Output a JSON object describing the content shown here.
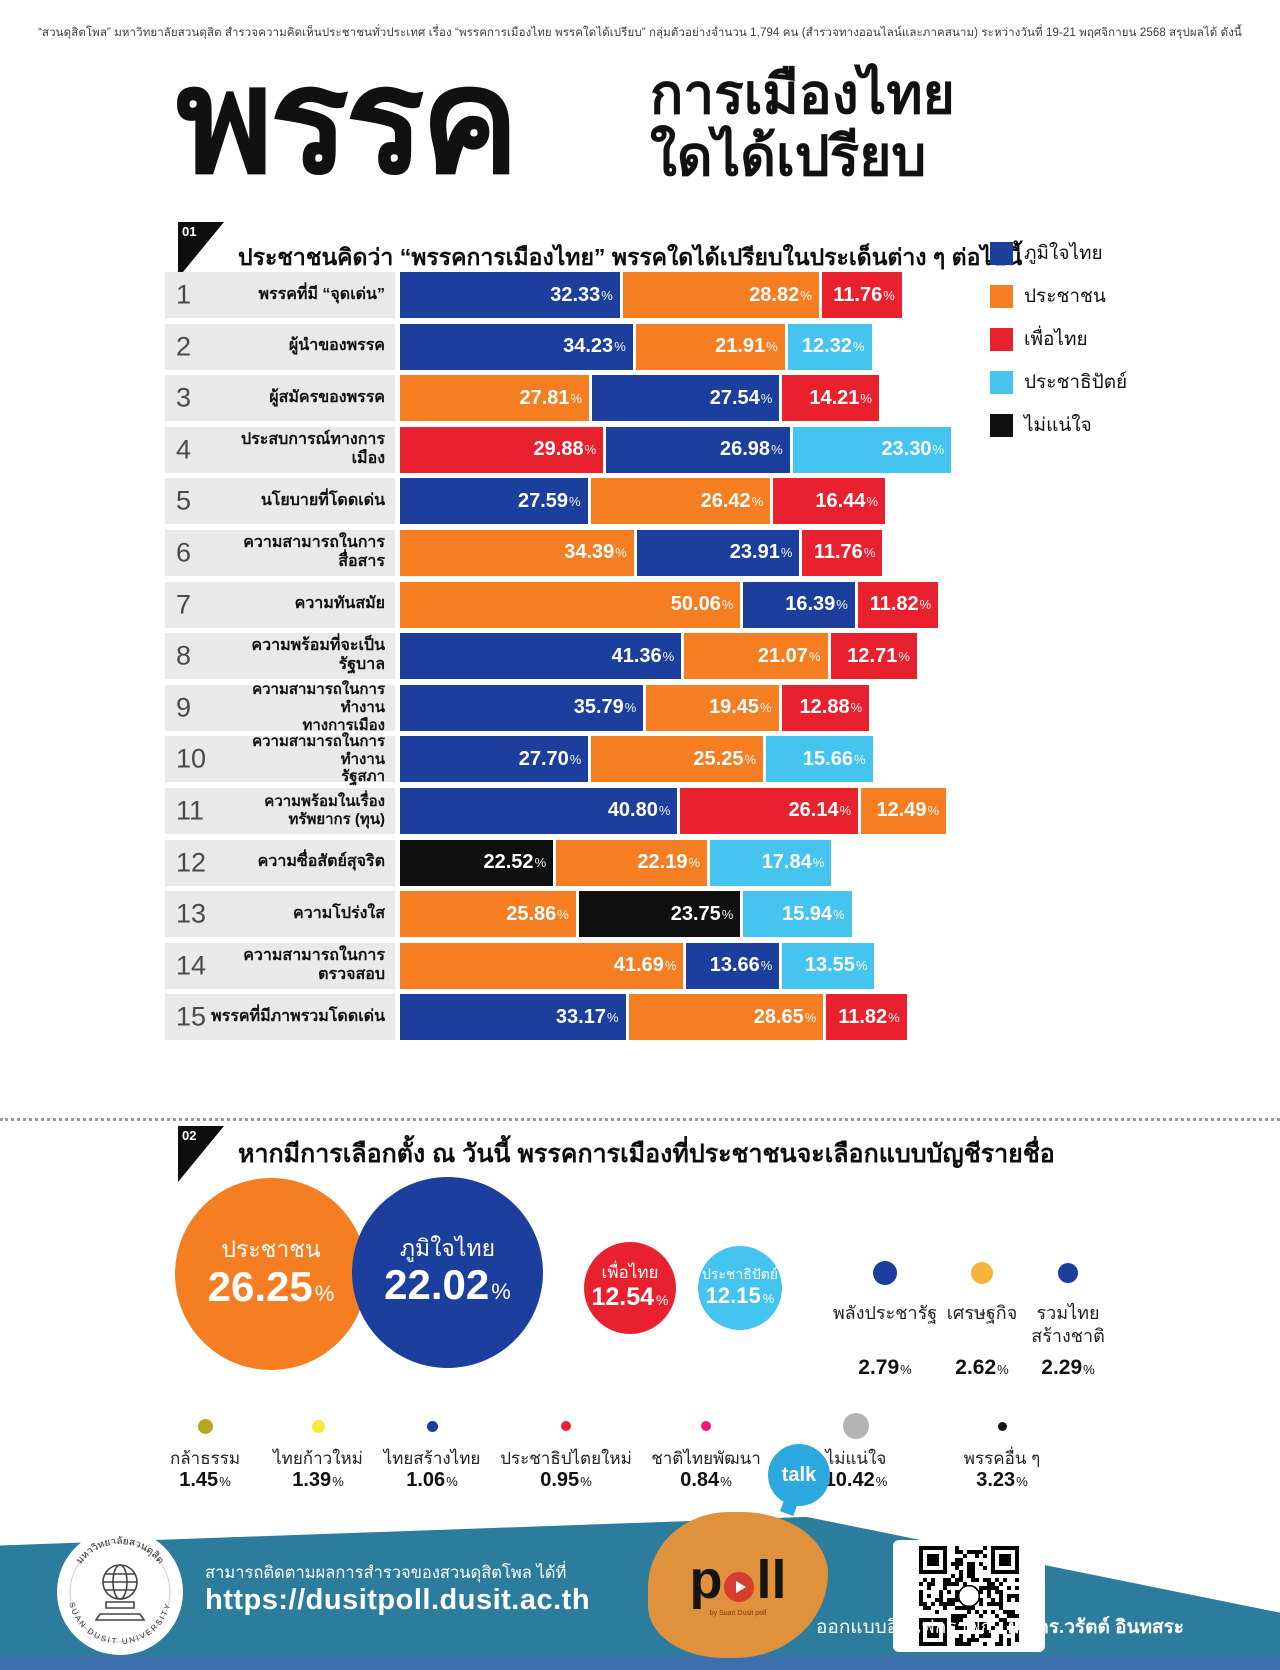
{
  "header_note": "“สวนดุสิตโพล” มหาวิทยาลัยสวนดุสิต สำรวจความคิดเห็นประชาชนทั่วประเทศ เรื่อง “พรรคการเมืองไทย พรรคใดได้เปรียบ” กลุ่มตัวอย่างจำนวน 1,794 คน  (สำรวจทางออนไลน์และภาคสนาม) ระหว่างวันที่ 19-21 พฤศจิกายน 2568  สรุปผลได้ ดังนี้",
  "title": {
    "big": "พรรค",
    "line1": "การเมืองไทย",
    "line2": "ใดได้เปรียบ"
  },
  "units": {
    "percent": "%"
  },
  "colors": {
    "bjt": "#1c3f9e",
    "pp": "#f47e21",
    "pt": "#e9212e",
    "dem": "#45c4ef",
    "unsure": "#0f0f0f"
  },
  "section1": {
    "number": "01",
    "title": "ประชาชนคิดว่า “พรรคการเมืองไทย” พรรคใดได้เปรียบในประเด็นต่าง ๆ ต่อไปนี้",
    "legend": [
      {
        "party": "bjt",
        "label": "ภูมิใจไทย"
      },
      {
        "party": "pp",
        "label": "ประชาชน"
      },
      {
        "party": "pt",
        "label": "เพื่อไทย"
      },
      {
        "party": "dem",
        "label": "ประชาธิปัตย์"
      },
      {
        "party": "unsure",
        "label": "ไม่แน่ใจ"
      }
    ],
    "rows": [
      {
        "no": "1",
        "label": "พรรคที่มี “จุดเด่น”",
        "segments": [
          {
            "party": "bjt",
            "value": "32.33"
          },
          {
            "party": "pp",
            "value": "28.82"
          },
          {
            "party": "pt",
            "value": "11.76"
          }
        ]
      },
      {
        "no": "2",
        "label": "ผู้นำของพรรค",
        "segments": [
          {
            "party": "bjt",
            "value": "34.23"
          },
          {
            "party": "pp",
            "value": "21.91"
          },
          {
            "party": "dem",
            "value": "12.32"
          }
        ]
      },
      {
        "no": "3",
        "label": "ผู้สมัครของพรรค",
        "segments": [
          {
            "party": "pp",
            "value": "27.81"
          },
          {
            "party": "bjt",
            "value": "27.54"
          },
          {
            "party": "pt",
            "value": "14.21"
          }
        ]
      },
      {
        "no": "4",
        "label": "ประสบการณ์ทางการเมือง",
        "segments": [
          {
            "party": "pt",
            "value": "29.88"
          },
          {
            "party": "bjt",
            "value": "26.98"
          },
          {
            "party": "dem",
            "value": "23.30"
          }
        ]
      },
      {
        "no": "5",
        "label": "นโยบายที่โดดเด่น",
        "segments": [
          {
            "party": "bjt",
            "value": "27.59"
          },
          {
            "party": "pp",
            "value": "26.42"
          },
          {
            "party": "pt",
            "value": "16.44"
          }
        ]
      },
      {
        "no": "6",
        "label": "ความสามารถในการสื่อสาร",
        "segments": [
          {
            "party": "pp",
            "value": "34.39"
          },
          {
            "party": "bjt",
            "value": "23.91"
          },
          {
            "party": "pt",
            "value": "11.76"
          }
        ]
      },
      {
        "no": "7",
        "label": "ความทันสมัย",
        "segments": [
          {
            "party": "pp",
            "value": "50.06"
          },
          {
            "party": "bjt",
            "value": "16.39"
          },
          {
            "party": "pt",
            "value": "11.82"
          }
        ]
      },
      {
        "no": "8",
        "label": "ความพร้อมที่จะเป็นรัฐบาล",
        "segments": [
          {
            "party": "bjt",
            "value": "41.36"
          },
          {
            "party": "pp",
            "value": "21.07"
          },
          {
            "party": "pt",
            "value": "12.71"
          }
        ]
      },
      {
        "no": "9",
        "label": "ความสามารถในการทำงาน\nทางการเมือง",
        "segments": [
          {
            "party": "bjt",
            "value": "35.79"
          },
          {
            "party": "pp",
            "value": "19.45"
          },
          {
            "party": "pt",
            "value": "12.88"
          }
        ]
      },
      {
        "no": "10",
        "label": "ความสามารถในการทำงาน\nรัฐสภา",
        "segments": [
          {
            "party": "bjt",
            "value": "27.70"
          },
          {
            "party": "pp",
            "value": "25.25"
          },
          {
            "party": "dem",
            "value": "15.66"
          }
        ]
      },
      {
        "no": "11",
        "label": "ความพร้อมในเรื่อง\nทรัพยากร (ทุน)",
        "segments": [
          {
            "party": "bjt",
            "value": "40.80"
          },
          {
            "party": "pt",
            "value": "26.14"
          },
          {
            "party": "pp",
            "value": "12.49"
          }
        ]
      },
      {
        "no": "12",
        "label": "ความซื่อสัตย์สุจริต",
        "segments": [
          {
            "party": "unsure",
            "value": "22.52"
          },
          {
            "party": "pp",
            "value": "22.19"
          },
          {
            "party": "dem",
            "value": "17.84"
          }
        ]
      },
      {
        "no": "13",
        "label": "ความโปร่งใส",
        "segments": [
          {
            "party": "pp",
            "value": "25.86"
          },
          {
            "party": "unsure",
            "value": "23.75"
          },
          {
            "party": "dem",
            "value": "15.94"
          }
        ]
      },
      {
        "no": "14",
        "label": "ความสามารถในการตรวจสอบ",
        "segments": [
          {
            "party": "pp",
            "value": "41.69"
          },
          {
            "party": "bjt",
            "value": "13.66"
          },
          {
            "party": "dem",
            "value": "13.55"
          }
        ]
      },
      {
        "no": "15",
        "label": "พรรคที่มีภาพรวมโดดเด่น",
        "segments": [
          {
            "party": "bjt",
            "value": "33.17"
          },
          {
            "party": "pp",
            "value": "28.65"
          },
          {
            "party": "pt",
            "value": "11.82"
          }
        ]
      }
    ]
  },
  "section2": {
    "number": "02",
    "title": "หากมีการเลือกตั้ง ณ วันนี้ พรรคการเมืองที่ประชาชนจะเลือกแบบบัญชีรายชื่อ",
    "big_bubbles": [
      {
        "party": "pp",
        "label": "ประชาชน",
        "value": "26.25"
      },
      {
        "party": "bjt",
        "label": "ภูมิใจไทย",
        "value": "22.02"
      },
      {
        "party": "pt",
        "label": "เพื่อไทย",
        "value": "12.54"
      },
      {
        "party": "dem",
        "label": "ประชาธิปัตย์",
        "value": "12.15"
      }
    ],
    "mid_parties": [
      {
        "label": "พลังประชารัฐ",
        "value": "2.79",
        "color": "#1c3f9e",
        "dot": 24
      },
      {
        "label": "เศรษฐกิจ",
        "value": "2.62",
        "color": "#f5b43c",
        "dot": 22
      },
      {
        "label": "รวมไทย\nสร้างชาติ",
        "value": "2.29",
        "color": "#1c3f9e",
        "dot": 20
      }
    ],
    "small_parties": [
      {
        "label": "กล้าธรรม",
        "value": "1.45",
        "color": "#b7a81b",
        "dot": 15
      },
      {
        "label": "ไทยก้าวใหม่",
        "value": "1.39",
        "color": "#f2ea3b",
        "dot": 13
      },
      {
        "label": "ไทยสร้างไทย",
        "value": "1.06",
        "color": "#1c3f9e",
        "dot": 11
      },
      {
        "label": "ประชาธิปไตยใหม่",
        "value": "0.95",
        "color": "#e9212e",
        "dot": 10
      },
      {
        "label": "ชาติไทยพัฒนา",
        "value": "0.84",
        "color": "#ec1a78",
        "dot": 10
      },
      {
        "label": "ไม่แน่ใจ",
        "value": "10.42",
        "color": "#b4b4b4",
        "dot": 26
      },
      {
        "label": "พรรคอื่น ๆ",
        "value": "3.23",
        "color": "#151515",
        "dot": 9
      }
    ]
  },
  "footer": {
    "follow_text": "สามารถติดตามผลการสำรวจของสวนดุสิตโพล ได้ที่",
    "url": "https://dusitpoll.dusit.ac.th",
    "credit_prefix": "ออกแบบอินโฟกราฟิก :",
    "credit_name": "ผศ.ดร.วรัตต์ อินทสระ",
    "logo_top": "มหาวิทยาลัยสวนดุสิต",
    "logo_bottom": "SUAN DUSIT UNIVERSITY",
    "poll_logo": {
      "word": "poll",
      "bubble": "talk",
      "sub": "by Suan Dusit poll"
    }
  },
  "chart_data": [
    {
      "type": "bar",
      "variant": "horizontal-stacked",
      "title": "ประชาชนคิดว่า “พรรคการเมืองไทย” พรรคใดได้เปรียบในประเด็นต่าง ๆ ต่อไปนี้",
      "unit": "%",
      "legend": [
        "ภูมิใจไทย",
        "ประชาชน",
        "เพื่อไทย",
        "ประชาธิปัตย์",
        "ไม่แน่ใจ"
      ],
      "legend_position": "right",
      "rows": [
        {
          "category": "พรรคที่มี “จุดเด่น”",
          "segments": [
            {
              "party": "ภูมิใจไทย",
              "value": 32.33
            },
            {
              "party": "ประชาชน",
              "value": 28.82
            },
            {
              "party": "เพื่อไทย",
              "value": 11.76
            }
          ]
        },
        {
          "category": "ผู้นำของพรรค",
          "segments": [
            {
              "party": "ภูมิใจไทย",
              "value": 34.23
            },
            {
              "party": "ประชาชน",
              "value": 21.91
            },
            {
              "party": "ประชาธิปัตย์",
              "value": 12.32
            }
          ]
        },
        {
          "category": "ผู้สมัครของพรรค",
          "segments": [
            {
              "party": "ประชาชน",
              "value": 27.81
            },
            {
              "party": "ภูมิใจไทย",
              "value": 27.54
            },
            {
              "party": "เพื่อไทย",
              "value": 14.21
            }
          ]
        },
        {
          "category": "ประสบการณ์ทางการเมือง",
          "segments": [
            {
              "party": "เพื่อไทย",
              "value": 29.88
            },
            {
              "party": "ภูมิใจไทย",
              "value": 26.98
            },
            {
              "party": "ประชาธิปัตย์",
              "value": 23.3
            }
          ]
        },
        {
          "category": "นโยบายที่โดดเด่น",
          "segments": [
            {
              "party": "ภูมิใจไทย",
              "value": 27.59
            },
            {
              "party": "ประชาชน",
              "value": 26.42
            },
            {
              "party": "เพื่อไทย",
              "value": 16.44
            }
          ]
        },
        {
          "category": "ความสามารถในการสื่อสาร",
          "segments": [
            {
              "party": "ประชาชน",
              "value": 34.39
            },
            {
              "party": "ภูมิใจไทย",
              "value": 23.91
            },
            {
              "party": "เพื่อไทย",
              "value": 11.76
            }
          ]
        },
        {
          "category": "ความทันสมัย",
          "segments": [
            {
              "party": "ประชาชน",
              "value": 50.06
            },
            {
              "party": "ภูมิใจไทย",
              "value": 16.39
            },
            {
              "party": "เพื่อไทย",
              "value": 11.82
            }
          ]
        },
        {
          "category": "ความพร้อมที่จะเป็นรัฐบาล",
          "segments": [
            {
              "party": "ภูมิใจไทย",
              "value": 41.36
            },
            {
              "party": "ประชาชน",
              "value": 21.07
            },
            {
              "party": "เพื่อไทย",
              "value": 12.71
            }
          ]
        },
        {
          "category": "ความสามารถในการทำงานทางการเมือง",
          "segments": [
            {
              "party": "ภูมิใจไทย",
              "value": 35.79
            },
            {
              "party": "ประชาชน",
              "value": 19.45
            },
            {
              "party": "เพื่อไทย",
              "value": 12.88
            }
          ]
        },
        {
          "category": "ความสามารถในการทำงานรัฐสภา",
          "segments": [
            {
              "party": "ภูมิใจไทย",
              "value": 27.7
            },
            {
              "party": "ประชาชน",
              "value": 25.25
            },
            {
              "party": "ประชาธิปัตย์",
              "value": 15.66
            }
          ]
        },
        {
          "category": "ความพร้อมในเรื่องทรัพยากร (ทุน)",
          "segments": [
            {
              "party": "ภูมิใจไทย",
              "value": 40.8
            },
            {
              "party": "เพื่อไทย",
              "value": 26.14
            },
            {
              "party": "ประชาชน",
              "value": 12.49
            }
          ]
        },
        {
          "category": "ความซื่อสัตย์สุจริต",
          "segments": [
            {
              "party": "ไม่แน่ใจ",
              "value": 22.52
            },
            {
              "party": "ประชาชน",
              "value": 22.19
            },
            {
              "party": "ประชาธิปัตย์",
              "value": 17.84
            }
          ]
        },
        {
          "category": "ความโปร่งใส",
          "segments": [
            {
              "party": "ประชาชน",
              "value": 25.86
            },
            {
              "party": "ไม่แน่ใจ",
              "value": 23.75
            },
            {
              "party": "ประชาธิปัตย์",
              "value": 15.94
            }
          ]
        },
        {
          "category": "ความสามารถในการตรวจสอบ",
          "segments": [
            {
              "party": "ประชาชน",
              "value": 41.69
            },
            {
              "party": "ภูมิใจไทย",
              "value": 13.66
            },
            {
              "party": "ประชาธิปัตย์",
              "value": 13.55
            }
          ]
        },
        {
          "category": "พรรคที่มีภาพรวมโดดเด่น",
          "segments": [
            {
              "party": "ภูมิใจไทย",
              "value": 33.17
            },
            {
              "party": "ประชาชน",
              "value": 28.65
            },
            {
              "party": "เพื่อไทย",
              "value": 11.82
            }
          ]
        }
      ]
    },
    {
      "type": "bubble",
      "title": "หากมีการเลือกตั้ง ณ วันนี้ พรรคการเมืองที่ประชาชนจะเลือกแบบบัญชีรายชื่อ",
      "unit": "%",
      "items": [
        {
          "party": "ประชาชน",
          "value": 26.25
        },
        {
          "party": "ภูมิใจไทย",
          "value": 22.02
        },
        {
          "party": "เพื่อไทย",
          "value": 12.54
        },
        {
          "party": "ประชาธิปัตย์",
          "value": 12.15
        },
        {
          "party": "พลังประชารัฐ",
          "value": 2.79
        },
        {
          "party": "เศรษฐกิจ",
          "value": 2.62
        },
        {
          "party": "รวมไทยสร้างชาติ",
          "value": 2.29
        },
        {
          "party": "กล้าธรรม",
          "value": 1.45
        },
        {
          "party": "ไทยก้าวใหม่",
          "value": 1.39
        },
        {
          "party": "ไทยสร้างไทย",
          "value": 1.06
        },
        {
          "party": "ประชาธิปไตยใหม่",
          "value": 0.95
        },
        {
          "party": "ชาติไทยพัฒนา",
          "value": 0.84
        },
        {
          "party": "ไม่แน่ใจ",
          "value": 10.42
        },
        {
          "party": "พรรคอื่น ๆ",
          "value": 3.23
        }
      ]
    }
  ]
}
